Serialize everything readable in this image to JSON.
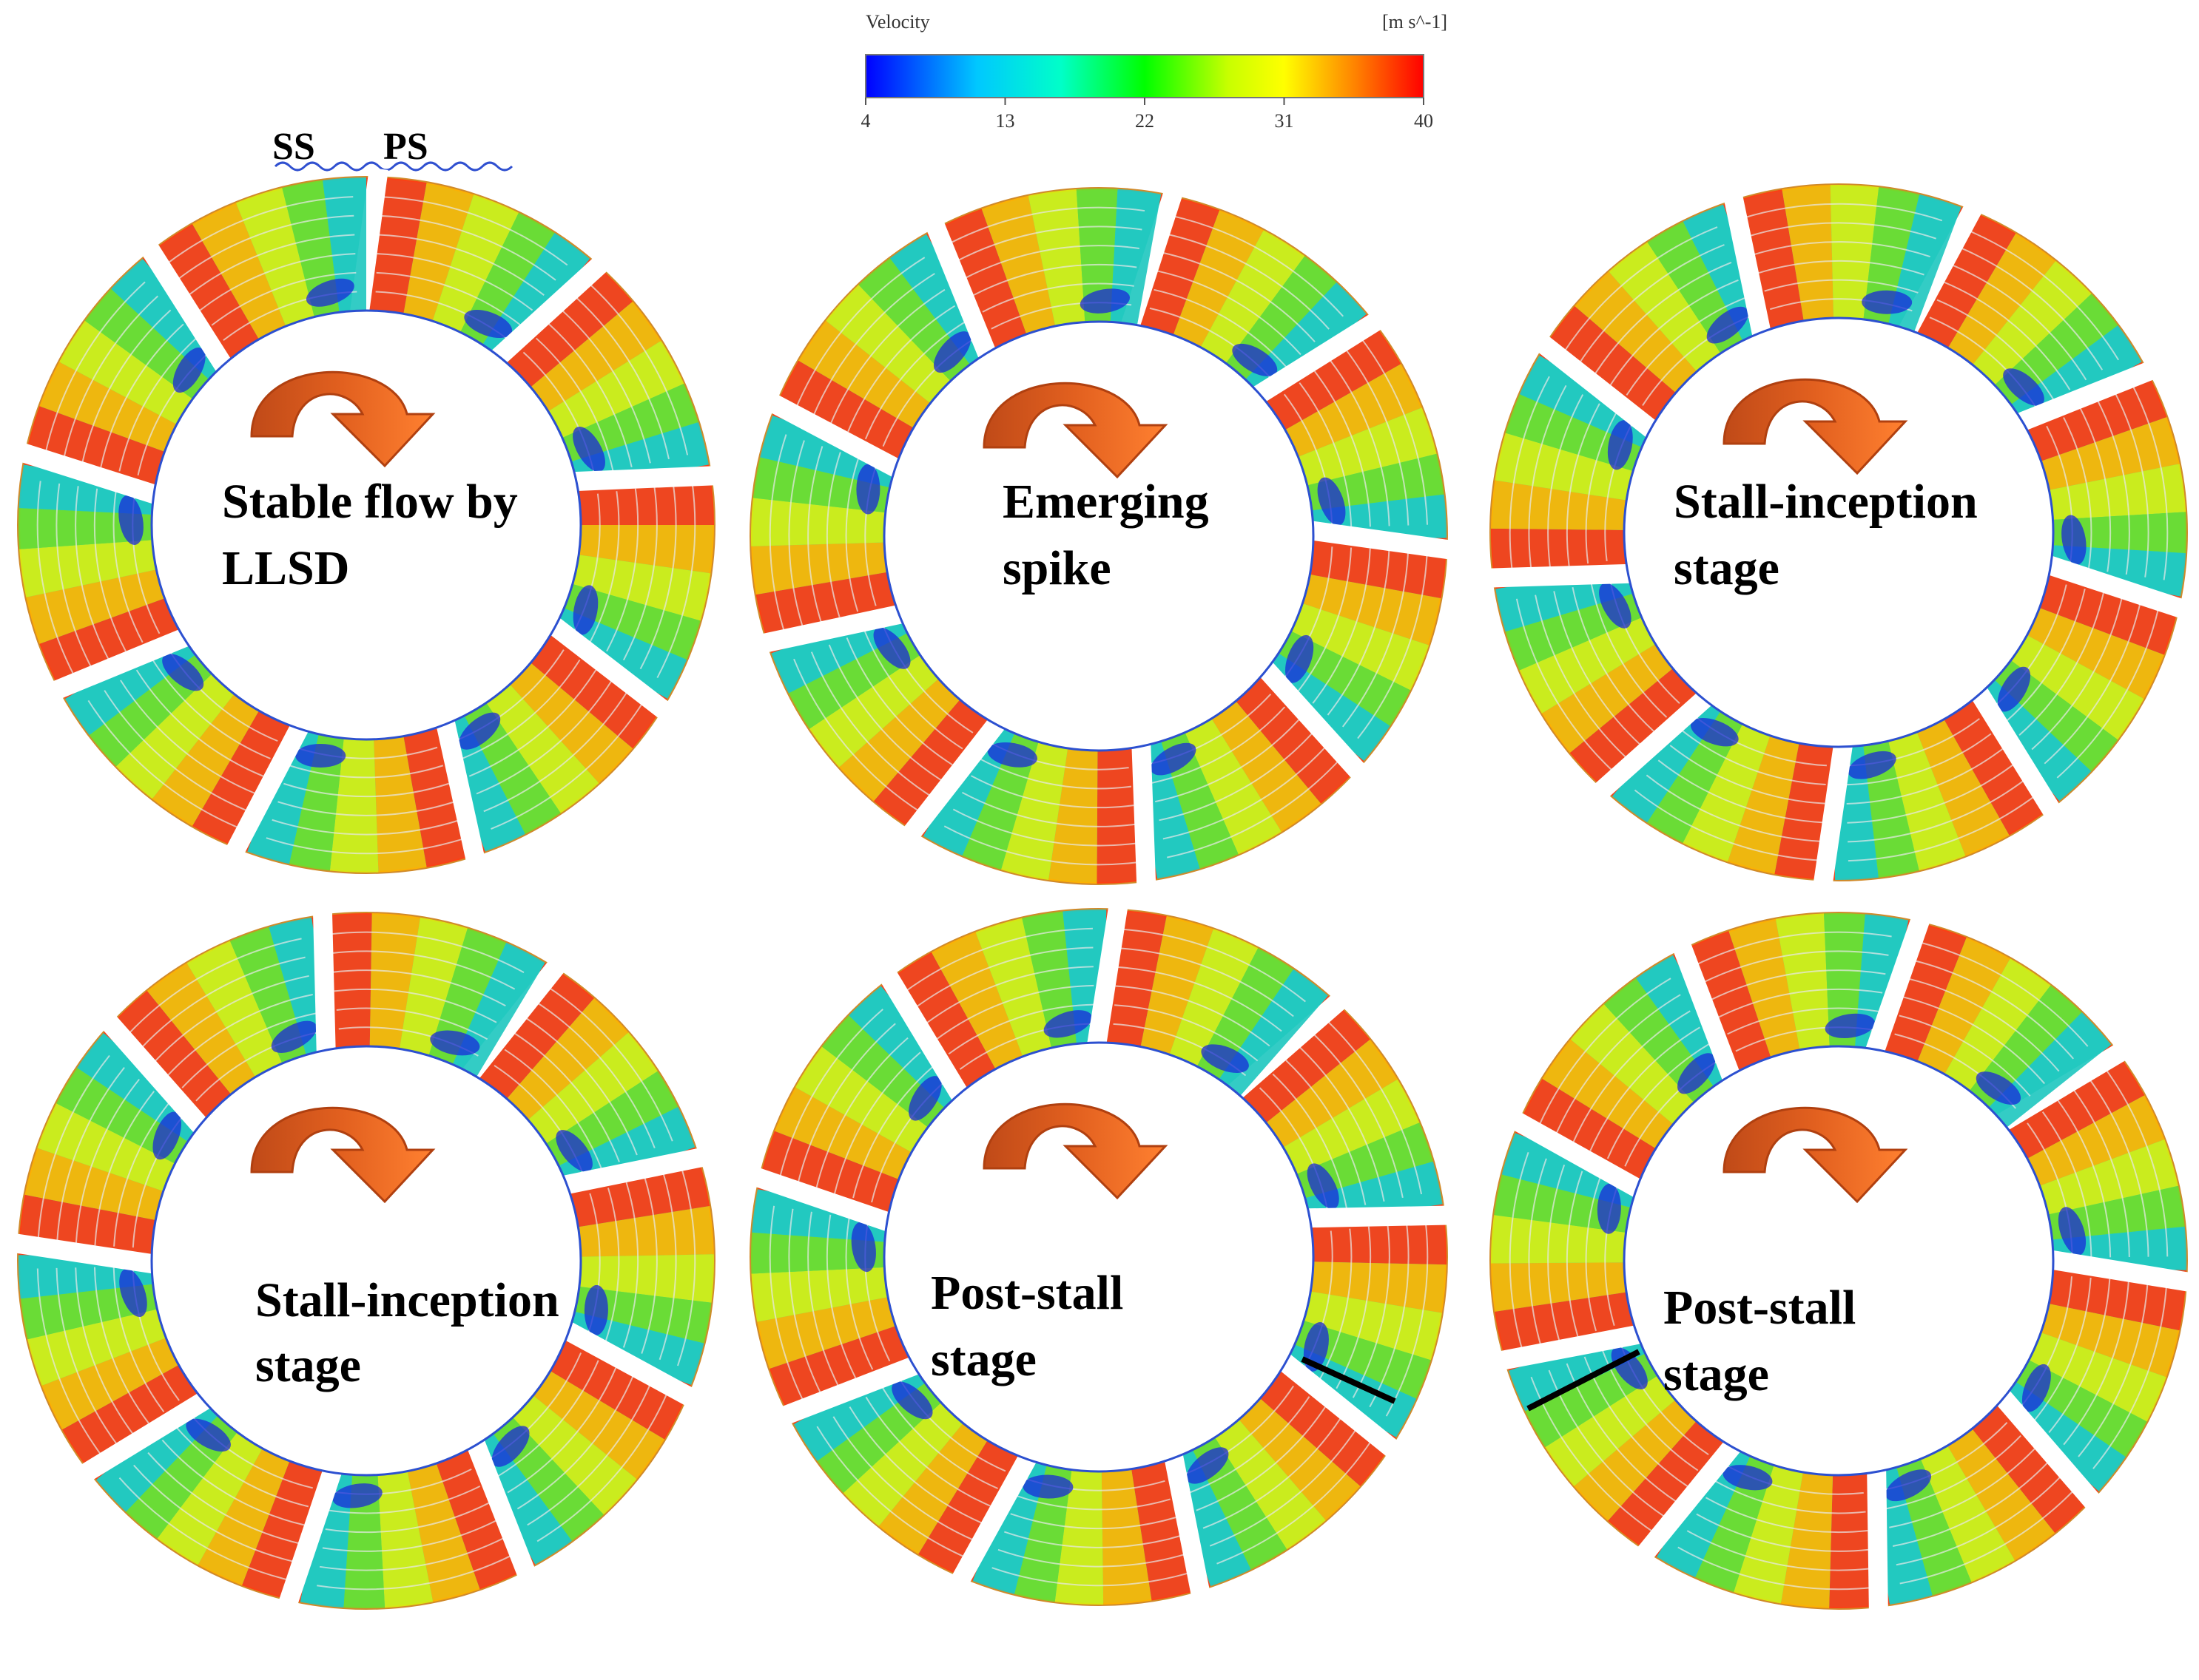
{
  "colorbar": {
    "title": "Velocity",
    "unit": "[m s^-1]",
    "ticks": [
      "4",
      "13",
      "22",
      "31",
      "40"
    ],
    "colors": [
      "#0000ff",
      "#00c0ff",
      "#00ffc0",
      "#00ff00",
      "#c0ff00",
      "#ffff00",
      "#ff8000",
      "#ff0000"
    ]
  },
  "annotations": {
    "ss": "SS",
    "ps": "PS"
  },
  "panels": [
    {
      "line1": "Stable flow by",
      "line2": "LLSD"
    },
    {
      "line1": "Emerging",
      "line2": "spike"
    },
    {
      "line1": "Stall-inception",
      "line2": "stage"
    },
    {
      "line1": "Stall-inception",
      "line2": "stage"
    },
    {
      "line1": "Post-stall",
      "line2": "stage"
    },
    {
      "line1": "Post-stall",
      "line2": "stage"
    }
  ],
  "arrow_colors": {
    "dark": "#c8501a",
    "light": "#ff7a2e"
  }
}
